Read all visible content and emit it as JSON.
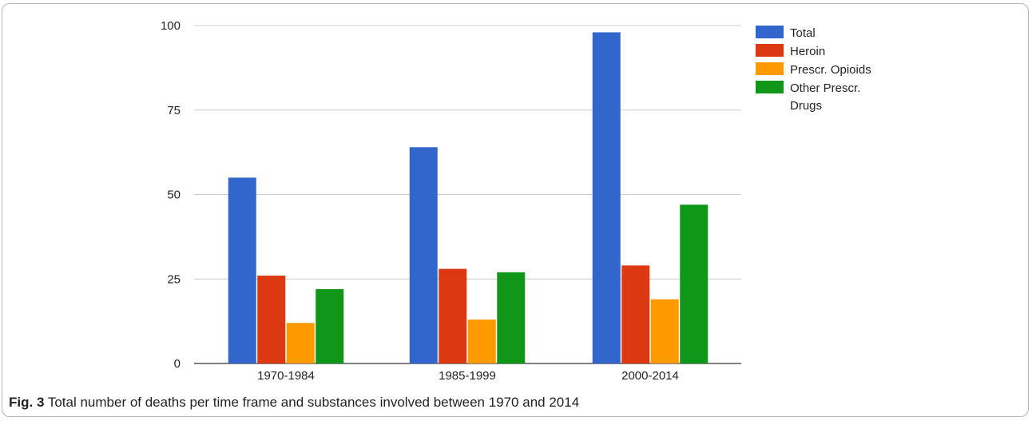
{
  "caption": {
    "label": "Fig. 3",
    "text": "Total number of deaths per time frame and substances involved between 1970 and 2014"
  },
  "chart_data": {
    "type": "bar",
    "title": "",
    "xlabel": "",
    "ylabel": "",
    "categories": [
      "1970-1984",
      "1985-1999",
      "2000-2014"
    ],
    "ylim": [
      0,
      100
    ],
    "yticks": [
      0,
      25,
      50,
      75,
      100
    ],
    "grid": true,
    "legend_position": "right",
    "series": [
      {
        "name": "Total",
        "color": "#3366cc",
        "values": [
          55,
          64,
          98
        ]
      },
      {
        "name": "Heroin",
        "color": "#dc3912",
        "values": [
          26,
          28,
          29
        ]
      },
      {
        "name": "Prescr. Opioids",
        "color": "#ff9900",
        "values": [
          12,
          13,
          19
        ]
      },
      {
        "name": "Other Prescr. Drugs",
        "color": "#109618",
        "values": [
          22,
          27,
          47
        ]
      }
    ]
  }
}
